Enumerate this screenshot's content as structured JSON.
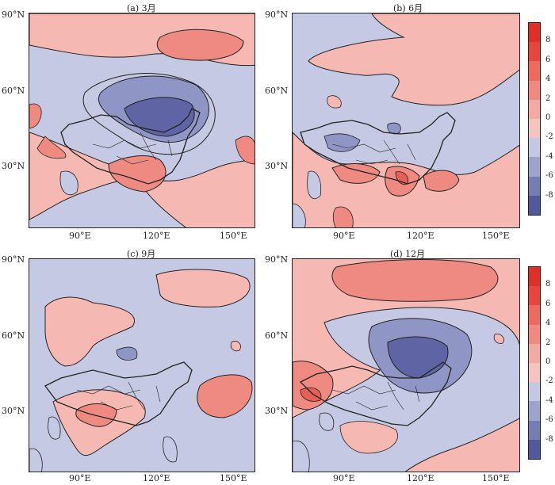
{
  "panels": [
    {
      "title": "(a) 3月",
      "lat_labels": [
        "90°N",
        "60°N",
        "30°N"
      ],
      "lon_labels": [
        "90°E",
        "120°E",
        "150°E"
      ]
    },
    {
      "title": "(b) 6月",
      "lat_labels": [
        "90°N",
        "60°N",
        "30°N"
      ],
      "lon_labels": [
        "90°E",
        "120°E",
        "150°E"
      ]
    },
    {
      "title": "(c) 9月",
      "lat_labels": [
        "90°N",
        "60°N",
        "30°N"
      ],
      "lon_labels": [
        "90°E",
        "120°E",
        "150°E"
      ]
    },
    {
      "title": "(d) 12月",
      "lat_labels": [
        "90°N",
        "60°N",
        "30°N"
      ],
      "lon_labels": [
        "90°E",
        "120°E",
        "150°E"
      ]
    }
  ],
  "colorbar": {
    "labels": [
      "8",
      "6",
      "4",
      "2",
      "0",
      "-2",
      "-4",
      "-6",
      "-8"
    ],
    "colors": [
      "#e8463c",
      "#ec6a5e",
      "#f08a80",
      "#f3aaa4",
      "#f5c4c0",
      "#c4c8e2",
      "#9ea3cc",
      "#767cb4",
      "#52589b"
    ]
  },
  "colors": {
    "positive_light": "#f5b8b3",
    "positive_mid": "#ee8a82",
    "positive_dark": "#e46058",
    "negative_light": "#c6c9e3",
    "negative_mid": "#8f95c4",
    "negative_dark": "#5e64a4",
    "line": "#222222"
  }
}
